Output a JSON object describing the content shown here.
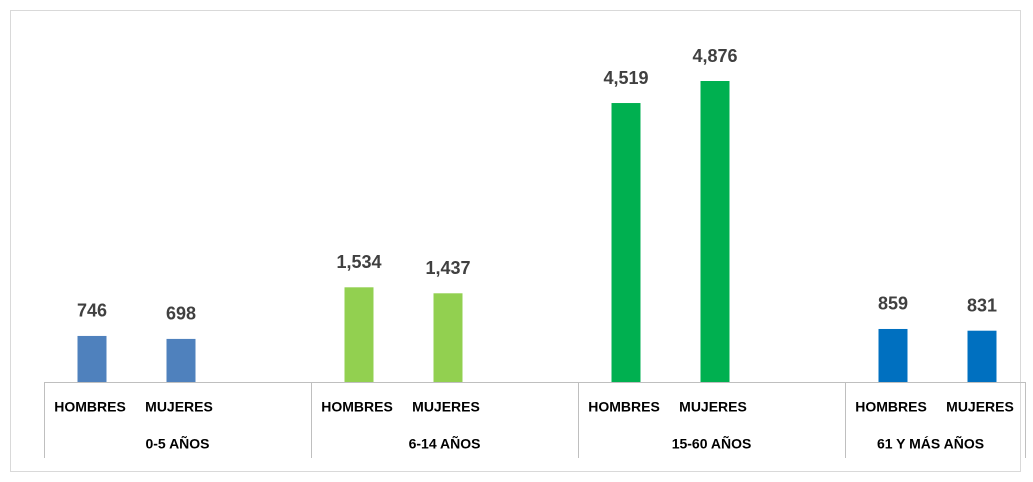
{
  "chart_data": {
    "type": "bar",
    "categories": [
      "HOMBRES",
      "MUJERES",
      "HOMBRES",
      "MUJERES",
      "HOMBRES",
      "MUJERES",
      "HOMBRES",
      "MUJERES"
    ],
    "groups": [
      {
        "label": "0-5 AÑOS",
        "color": "#4f81bd"
      },
      {
        "label": "6-14 AÑOS",
        "color": "#92d050"
      },
      {
        "label": "15-60 AÑOS",
        "color": "#00b050"
      },
      {
        "label": "61 Y MÁS AÑOS",
        "color": "#0070c0"
      }
    ],
    "values": [
      746,
      698,
      1534,
      1437,
      4519,
      4876,
      859,
      831
    ],
    "value_labels": [
      "746",
      "698",
      "1,534",
      "1,437",
      "4,519",
      "4,876",
      "859",
      "831"
    ]
  }
}
